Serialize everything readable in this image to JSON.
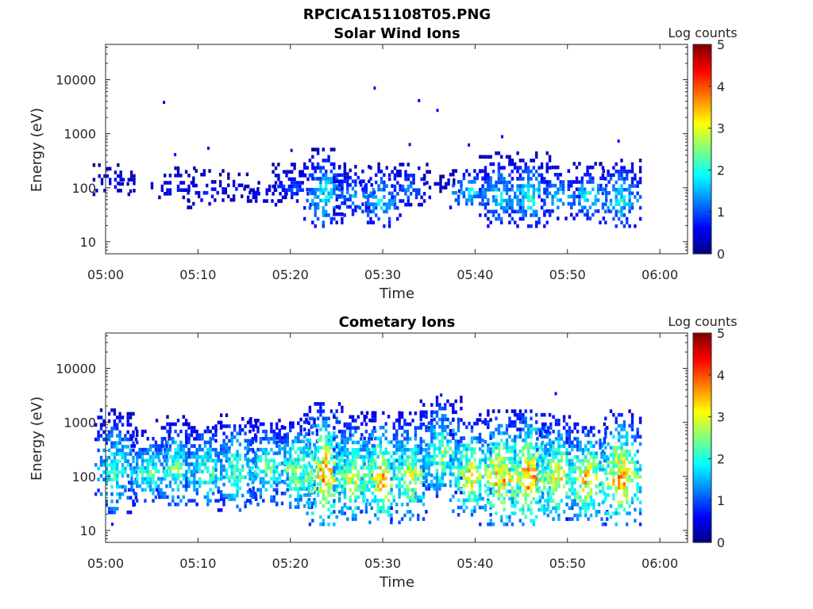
{
  "figure_title": "RPCICA151108T05.PNG",
  "chart_data": [
    {
      "type": "heatmap",
      "title": "Solar Wind Ions",
      "xlabel": "Time",
      "ylabel": "Energy (eV)",
      "x_ticks": [
        "05:00",
        "05:10",
        "05:20",
        "05:30",
        "05:40",
        "05:50",
        "06:00"
      ],
      "y_ticks": [
        "10",
        "100",
        "1000",
        "10000"
      ],
      "y_scale": "log",
      "y_range_eV": [
        6,
        45000
      ],
      "x_range_min": [
        0,
        63
      ],
      "colorbar": {
        "label": "Log counts",
        "ticks": [
          "0",
          "1",
          "2",
          "3",
          "4",
          "5"
        ],
        "range": [
          0,
          5
        ],
        "colormap": "jet"
      },
      "sweeps": [
        {
          "t": 0.8,
          "emin": 70,
          "emax": 260,
          "peak": 0.7,
          "density": 0.55
        },
        {
          "t": 3.6,
          "emin": 80,
          "emax": 130,
          "peak": 0.6,
          "density": 0.35
        },
        {
          "t": 7.6,
          "emin": 45,
          "emax": 240,
          "peak": 0.7,
          "density": 0.45
        },
        {
          "t": 11.0,
          "emin": 40,
          "emax": 200,
          "peak": 0.8,
          "density": 0.55
        },
        {
          "t": 14.2,
          "emin": 55,
          "emax": 170,
          "peak": 0.7,
          "density": 0.45
        },
        {
          "t": 17.2,
          "emin": 45,
          "emax": 130,
          "peak": 0.8,
          "density": 0.5
        },
        {
          "t": 20.2,
          "emin": 45,
          "emax": 250,
          "peak": 1.1,
          "density": 0.6
        },
        {
          "t": 23.6,
          "emin": 18,
          "emax": 480,
          "peak": 2.0,
          "density": 0.75
        },
        {
          "t": 26.8,
          "emin": 30,
          "emax": 230,
          "peak": 1.5,
          "density": 0.6
        },
        {
          "t": 29.6,
          "emin": 18,
          "emax": 260,
          "peak": 1.8,
          "density": 0.65
        },
        {
          "t": 32.8,
          "emin": 45,
          "emax": 280,
          "peak": 1.4,
          "density": 0.55
        },
        {
          "t": 36.0,
          "emin": 80,
          "emax": 150,
          "peak": 0.6,
          "density": 0.35
        },
        {
          "t": 39.4,
          "emin": 40,
          "emax": 220,
          "peak": 1.9,
          "density": 0.7
        },
        {
          "t": 42.6,
          "emin": 18,
          "emax": 420,
          "peak": 1.9,
          "density": 0.75
        },
        {
          "t": 45.8,
          "emin": 18,
          "emax": 420,
          "peak": 2.1,
          "density": 0.8
        },
        {
          "t": 49.0,
          "emin": 25,
          "emax": 250,
          "peak": 1.7,
          "density": 0.65
        },
        {
          "t": 52.2,
          "emin": 25,
          "emax": 260,
          "peak": 2.0,
          "density": 0.7
        },
        {
          "t": 55.6,
          "emin": 18,
          "emax": 320,
          "peak": 2.0,
          "density": 0.75
        }
      ],
      "outliers": [
        {
          "t": 6.2,
          "e": 3800
        },
        {
          "t": 29.0,
          "e": 7000
        },
        {
          "t": 33.8,
          "e": 4100
        },
        {
          "t": 35.8,
          "e": 2700
        },
        {
          "t": 42.8,
          "e": 880
        },
        {
          "t": 32.8,
          "e": 630
        },
        {
          "t": 39.2,
          "e": 620
        },
        {
          "t": 11.0,
          "e": 540
        },
        {
          "t": 20.0,
          "e": 490
        },
        {
          "t": 55.4,
          "e": 730
        },
        {
          "t": 7.4,
          "e": 410
        }
      ]
    },
    {
      "type": "heatmap",
      "title": "Cometary Ions",
      "xlabel": "Time",
      "ylabel": "Energy (eV)",
      "x_ticks": [
        "05:00",
        "05:10",
        "05:20",
        "05:30",
        "05:40",
        "05:50",
        "06:00"
      ],
      "y_ticks": [
        "10",
        "100",
        "1000",
        "10000"
      ],
      "y_scale": "log",
      "y_range_eV": [
        6,
        45000
      ],
      "x_range_min": [
        0,
        63
      ],
      "colorbar": {
        "label": "Log counts",
        "ticks": [
          "0",
          "1",
          "2",
          "3",
          "4",
          "5"
        ],
        "range": [
          0,
          5
        ],
        "colormap": "jet"
      },
      "sweeps": [
        {
          "t": 1.0,
          "emin": 20,
          "emax": 1800,
          "peak": 2.4,
          "density": 0.85
        },
        {
          "t": 4.6,
          "emin": 28,
          "emax": 700,
          "peak": 2.4,
          "density": 0.85
        },
        {
          "t": 7.6,
          "emin": 28,
          "emax": 1200,
          "peak": 2.6,
          "density": 0.85
        },
        {
          "t": 10.8,
          "emin": 28,
          "emax": 1000,
          "peak": 2.5,
          "density": 0.85
        },
        {
          "t": 14.0,
          "emin": 22,
          "emax": 1400,
          "peak": 2.5,
          "density": 0.85
        },
        {
          "t": 17.4,
          "emin": 28,
          "emax": 1100,
          "peak": 2.6,
          "density": 0.85
        },
        {
          "t": 20.6,
          "emin": 25,
          "emax": 1200,
          "peak": 2.9,
          "density": 0.85
        },
        {
          "t": 23.6,
          "emin": 12,
          "emax": 2300,
          "peak": 3.8,
          "density": 0.9
        },
        {
          "t": 26.8,
          "emin": 15,
          "emax": 1200,
          "peak": 3.1,
          "density": 0.85
        },
        {
          "t": 29.8,
          "emin": 13,
          "emax": 1400,
          "peak": 3.6,
          "density": 0.85
        },
        {
          "t": 33.0,
          "emin": 15,
          "emax": 1500,
          "peak": 3.0,
          "density": 0.85
        },
        {
          "t": 36.2,
          "emin": 40,
          "emax": 3000,
          "peak": 2.7,
          "density": 0.85
        },
        {
          "t": 39.4,
          "emin": 18,
          "emax": 1100,
          "peak": 3.4,
          "density": 0.85
        },
        {
          "t": 42.6,
          "emin": 12,
          "emax": 1500,
          "peak": 3.8,
          "density": 0.9
        },
        {
          "t": 45.8,
          "emin": 12,
          "emax": 1700,
          "peak": 4.0,
          "density": 0.9
        },
        {
          "t": 48.8,
          "emin": 15,
          "emax": 1300,
          "peak": 3.4,
          "density": 0.85
        },
        {
          "t": 52.0,
          "emin": 15,
          "emax": 900,
          "peak": 3.6,
          "density": 0.85
        },
        {
          "t": 55.6,
          "emin": 12,
          "emax": 1500,
          "peak": 3.8,
          "density": 0.9
        }
      ],
      "outliers": [
        {
          "t": 36.2,
          "e": 3200
        },
        {
          "t": 48.6,
          "e": 3400
        },
        {
          "t": 0.6,
          "e": 13
        }
      ]
    }
  ]
}
